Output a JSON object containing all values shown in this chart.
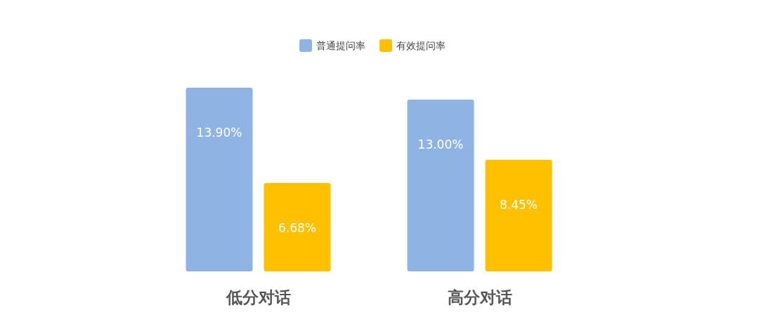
{
  "chart_data": {
    "type": "bar",
    "categories": [
      "低分对话",
      "高分对话"
    ],
    "series": [
      {
        "name": "普通提问率",
        "color": "#8fb4e3",
        "values": [
          13.9,
          13.0
        ],
        "value_labels": [
          "13.90%",
          "13.00%"
        ]
      },
      {
        "name": "有效提问率",
        "color": "#ffc000",
        "values": [
          6.68,
          8.45
        ],
        "value_labels": [
          "6.68%",
          "8.45%"
        ]
      }
    ],
    "legend": "top",
    "grid": false
  }
}
